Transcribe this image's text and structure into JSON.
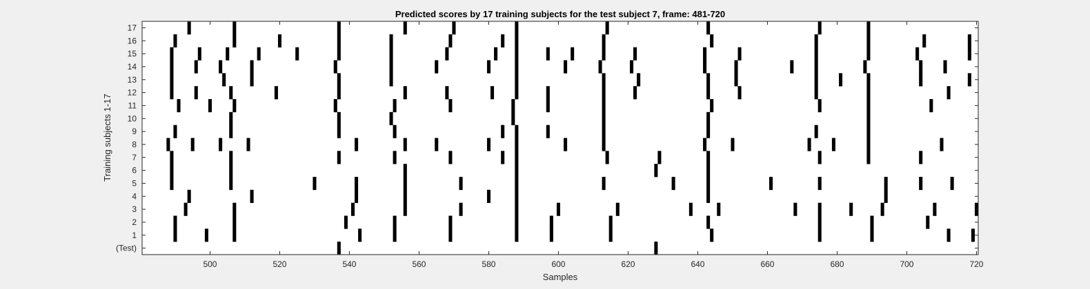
{
  "chart_data": {
    "type": "heatmap",
    "title": "Predicted scores by 17 training subjects for the test subject 7, frame: 481-720",
    "xlabel": "Samples",
    "ylabel": "Training subjects 1-17",
    "xlim": [
      481,
      720
    ],
    "x_ticks": [
      500,
      520,
      540,
      560,
      580,
      600,
      620,
      640,
      660,
      680,
      700,
      720
    ],
    "row_labels": [
      "(Test)",
      "1",
      "2",
      "3",
      "4",
      "5",
      "6",
      "7",
      "8",
      "9",
      "10",
      "11",
      "12",
      "13",
      "14",
      "15",
      "16",
      "17"
    ],
    "background_color": "#ffffff",
    "mark_color": "#000000",
    "rows": [
      {
        "label": "(Test)",
        "x": [
          537,
          628
        ]
      },
      {
        "label": "1",
        "x": [
          490,
          499,
          507,
          543,
          553,
          569,
          588,
          598,
          615,
          644,
          675,
          690,
          712,
          719
        ]
      },
      {
        "label": "2",
        "x": [
          490,
          507,
          539,
          553,
          569,
          588,
          598,
          615,
          643,
          675,
          690,
          706
        ]
      },
      {
        "label": "3",
        "x": [
          493,
          507,
          541,
          556,
          572,
          588,
          600,
          617,
          638,
          646,
          668,
          675,
          684,
          693,
          708,
          720
        ]
      },
      {
        "label": "4",
        "x": [
          494,
          512,
          542,
          556,
          580,
          588,
          643,
          694
        ]
      },
      {
        "label": "5",
        "x": [
          489,
          506,
          530,
          542,
          556,
          572,
          588,
          613,
          633,
          643,
          661,
          675,
          694,
          704,
          713
        ]
      },
      {
        "label": "6",
        "x": [
          489,
          506,
          556,
          588,
          628,
          643
        ]
      },
      {
        "label": "7",
        "x": [
          489,
          506,
          537,
          553,
          569,
          584,
          588,
          614,
          629,
          643,
          675,
          689,
          704
        ]
      },
      {
        "label": "8",
        "x": [
          488,
          495,
          503,
          511,
          542,
          556,
          565,
          580,
          588,
          602,
          613,
          642,
          650,
          672,
          679,
          689,
          710
        ]
      },
      {
        "label": "9",
        "x": [
          490,
          506,
          537,
          553,
          584,
          588,
          597,
          613,
          643,
          674,
          689
        ]
      },
      {
        "label": "10",
        "x": [
          506,
          537,
          552,
          587,
          613,
          643,
          689
        ]
      },
      {
        "label": "11",
        "x": [
          491,
          500,
          507,
          536,
          553,
          569,
          587,
          597,
          613,
          644,
          675,
          689,
          707
        ]
      },
      {
        "label": "12",
        "x": [
          489,
          496,
          506,
          519,
          537,
          556,
          568,
          581,
          588,
          597,
          613,
          622,
          643,
          652,
          674,
          689,
          712
        ]
      },
      {
        "label": "13",
        "x": [
          489,
          504,
          512,
          537,
          552,
          588,
          613,
          623,
          643,
          651,
          674,
          681,
          689,
          704,
          718
        ]
      },
      {
        "label": "14",
        "x": [
          489,
          496,
          503,
          512,
          536,
          552,
          565,
          580,
          588,
          602,
          612,
          621,
          642,
          651,
          667,
          674,
          688,
          704,
          711
        ]
      },
      {
        "label": "15",
        "x": [
          489,
          497,
          505,
          514,
          525,
          537,
          552,
          568,
          582,
          588,
          597,
          604,
          613,
          622,
          642,
          652,
          674,
          689,
          703,
          718
        ]
      },
      {
        "label": "16",
        "x": [
          490,
          507,
          520,
          537,
          552,
          569,
          584,
          588,
          613,
          644,
          674,
          689,
          705,
          718
        ]
      },
      {
        "label": "17",
        "x": [
          494,
          507,
          537,
          556,
          570,
          588,
          614,
          643,
          675,
          689
        ]
      }
    ]
  }
}
